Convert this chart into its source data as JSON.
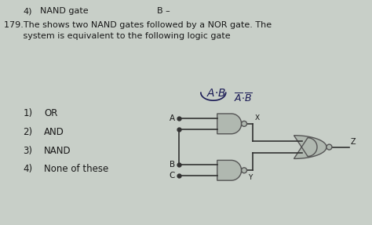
{
  "bg_color": "#c8cfc8",
  "title_line1": "179.The shows two NAND gates followed by a NOR gate. The",
  "title_line2": "       system is equivalent to the following logic gate",
  "header_num": "4)",
  "header_label": "NAND gate",
  "header_b": "B –",
  "options": [
    [
      "1)",
      "OR"
    ],
    [
      "2)",
      "AND"
    ],
    [
      "3)",
      "NAND"
    ],
    [
      "4)",
      "None of these"
    ]
  ],
  "node_x": "X",
  "node_y": "Y",
  "node_z": "Z",
  "input_a": "A",
  "input_b": "B",
  "input_c": "C",
  "text_color": "#1a1a1a",
  "gate_color": "#b0b8b0",
  "gate_edge": "#555555",
  "wire_color": "#333333",
  "hw_color1": "#1a1a3a",
  "hw_color2": "#1a1a3a"
}
